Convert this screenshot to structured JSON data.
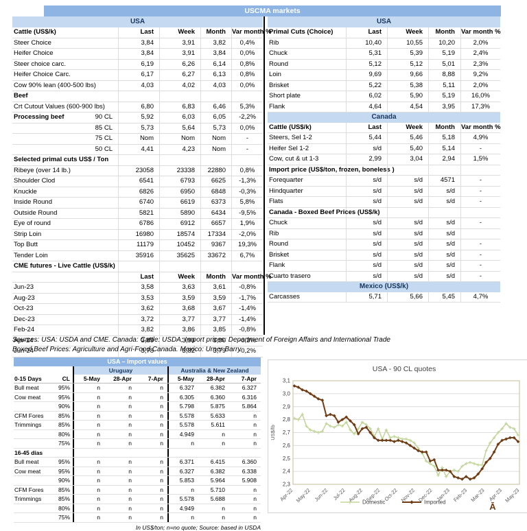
{
  "title": "USCMA markets",
  "colors": {
    "header_bar": "#8db4e2",
    "band": "#c5d9f1",
    "band_text": "#17365d",
    "domestic": "#c3d69b",
    "imported": "#6f3d15"
  },
  "left_table": {
    "region": "USA",
    "rows": [
      {
        "t": "ch",
        "label": "Cattle (US$/k)",
        "v": [
          "Last",
          "Week",
          "Month",
          "Var month %"
        ]
      },
      {
        "t": "d",
        "label": "Steer Choice",
        "v": [
          "3,84",
          "3,91",
          "3,82",
          "0,4%"
        ]
      },
      {
        "t": "d",
        "label": "Heifer Choice",
        "v": [
          "3,84",
          "3,91",
          "3,84",
          "0,0%"
        ]
      },
      {
        "t": "d",
        "label": "Steer choice carc.",
        "v": [
          "6,19",
          "6,26",
          "6,14",
          "0,8%"
        ]
      },
      {
        "t": "d",
        "label": "Heifer Choice Carc.",
        "v": [
          "6,17",
          "6,27",
          "6,13",
          "0,8%"
        ]
      },
      {
        "t": "d",
        "label": "Cow 90% lean (400-500 lbs)",
        "v": [
          "4,03",
          "4,02",
          "4,03",
          "0,0%"
        ]
      },
      {
        "t": "s",
        "label": "Beef"
      },
      {
        "t": "d",
        "label": "Crt Cutout Values (600-900 lbs)",
        "v": [
          "6,80",
          "6,83",
          "6,46",
          "5,3%"
        ]
      },
      {
        "t": "d",
        "label": "Processing beef",
        "label2": "90 CL",
        "bold": true,
        "v": [
          "5,92",
          "6,03",
          "6,05",
          "-2,2%"
        ]
      },
      {
        "t": "d",
        "label": "",
        "label2": "85 CL",
        "v": [
          "5,73",
          "5,64",
          "5,73",
          "0,0%"
        ]
      },
      {
        "t": "d",
        "label": "",
        "label2": "75 CL",
        "v": [
          "Nom",
          "Nom",
          "Nom",
          "-"
        ]
      },
      {
        "t": "d",
        "label": "",
        "label2": "50 CL",
        "v": [
          "4,41",
          "4,23",
          "Nom",
          "-"
        ]
      },
      {
        "t": "s",
        "label": "Selected primal cuts US$ / Ton"
      },
      {
        "t": "d",
        "label": "Ribeye (over 14 lb.)",
        "v": [
          "23058",
          "23338",
          "22880",
          "0,8%"
        ]
      },
      {
        "t": "d",
        "label": "Shoulder Clod",
        "v": [
          "6541",
          "6793",
          "6625",
          "-1,3%"
        ]
      },
      {
        "t": "d",
        "label": "Knuckle",
        "v": [
          "6826",
          "6950",
          "6848",
          "-0,3%"
        ]
      },
      {
        "t": "d",
        "label": "Inside Round",
        "v": [
          "6740",
          "6619",
          "6373",
          "5,8%"
        ]
      },
      {
        "t": "d",
        "label": "Outside Round",
        "v": [
          "5821",
          "5890",
          "6434",
          "-9,5%"
        ]
      },
      {
        "t": "d",
        "label": "Eye of round",
        "v": [
          "6786",
          "6912",
          "6657",
          "1,9%"
        ]
      },
      {
        "t": "d",
        "label": "Strip Loin",
        "v": [
          "16980",
          "18574",
          "17334",
          "-2,0%"
        ]
      },
      {
        "t": "d",
        "label": "Top Butt",
        "v": [
          "11179",
          "10452",
          "9367",
          "19,3%"
        ]
      },
      {
        "t": "d",
        "label": "Tender Loin",
        "v": [
          "35916",
          "35625",
          "33672",
          "6,7%"
        ]
      },
      {
        "t": "s",
        "label": "CME futures - Live Cattle (US$/k)"
      },
      {
        "t": "ch",
        "label": "",
        "v": [
          "Last",
          "Week",
          "Month",
          "Var month %"
        ]
      },
      {
        "t": "d",
        "label": "Jun-23",
        "v": [
          "3,58",
          "3,63",
          "3,61",
          "-0,8%"
        ]
      },
      {
        "t": "d",
        "label": "Aug-23",
        "v": [
          "3,53",
          "3,59",
          "3,59",
          "-1,7%"
        ]
      },
      {
        "t": "d",
        "label": "Oct-23",
        "v": [
          "3,62",
          "3,68",
          "3,67",
          "-1,4%"
        ]
      },
      {
        "t": "d",
        "label": "Dec-23",
        "v": [
          "3,72",
          "3,77",
          "3,77",
          "-1,4%"
        ]
      },
      {
        "t": "d",
        "label": "Feb-24",
        "v": [
          "3,82",
          "3,86",
          "3,85",
          "-0,8%"
        ]
      },
      {
        "t": "d",
        "label": "Apr-24",
        "v": [
          "3,89",
          "3,93",
          "3,90",
          "-0,3%"
        ]
      },
      {
        "t": "d",
        "label": "Jun-24",
        "v": [
          "3,78",
          "3,82",
          "3,79",
          "-0,2%"
        ]
      }
    ]
  },
  "right_table": {
    "region": "USA",
    "rows": [
      {
        "t": "ch",
        "label": "Primal Cuts (Choice)",
        "v": [
          "Last",
          "Week",
          "Month",
          "Var month %"
        ]
      },
      {
        "t": "d",
        "label": "Rib",
        "v": [
          "10,40",
          "10,55",
          "10,20",
          "2,0%"
        ]
      },
      {
        "t": "d",
        "label": "Chuck",
        "v": [
          "5,31",
          "5,39",
          "5,19",
          "2,4%"
        ]
      },
      {
        "t": "d",
        "label": "Round",
        "v": [
          "5,12",
          "5,12",
          "5,01",
          "2,3%"
        ]
      },
      {
        "t": "d",
        "label": "Loin",
        "v": [
          "9,69",
          "9,66",
          "8,88",
          "9,2%"
        ]
      },
      {
        "t": "d",
        "label": "Brisket",
        "v": [
          "5,22",
          "5,38",
          "5,11",
          "2,0%"
        ]
      },
      {
        "t": "d",
        "label": "Short plate",
        "v": [
          "6,02",
          "5,90",
          "5,19",
          "16,0%"
        ]
      },
      {
        "t": "d",
        "label": "Flank",
        "v": [
          "4,64",
          "4,54",
          "3,95",
          "17,3%"
        ]
      },
      {
        "t": "band",
        "label": "Canada"
      },
      {
        "t": "ch",
        "label": "Cattle (US$/k)",
        "v": [
          "Last",
          "Week",
          "Month",
          "Var month %"
        ]
      },
      {
        "t": "d",
        "label": "Steers, Sel 1-2",
        "v": [
          "5,44",
          "5,46",
          "5,18",
          "4,9%"
        ]
      },
      {
        "t": "d",
        "label": "Heifer Sel 1-2",
        "v": [
          "s/d",
          "5,40",
          "5,14",
          "-"
        ]
      },
      {
        "t": "d",
        "label": "Cow, cut & ut 1-3",
        "v": [
          "2,99",
          "3,04",
          "2,94",
          "1,5%"
        ]
      },
      {
        "t": "s",
        "label": "Import price (US$/ton, frozen, boneless )"
      },
      {
        "t": "d",
        "label": "Forequarter",
        "v": [
          "s/d",
          "s/d",
          "4571",
          "-"
        ]
      },
      {
        "t": "d",
        "label": "Hindquarter",
        "v": [
          "s/d",
          "s/d",
          "s/d",
          "-"
        ]
      },
      {
        "t": "d",
        "label": "Flats",
        "v": [
          "s/d",
          "s/d",
          "s/d",
          "-"
        ]
      },
      {
        "t": "s",
        "label": "Canada - Boxed Beef Prices (US$/k)"
      },
      {
        "t": "d",
        "label": "Chuck",
        "v": [
          "s/d",
          "s/d",
          "s/d",
          "-"
        ]
      },
      {
        "t": "d",
        "label": "Rib",
        "v": [
          "s/d",
          "s/d",
          "s/d",
          ""
        ]
      },
      {
        "t": "d",
        "label": "Round",
        "v": [
          "s/d",
          "s/d",
          "s/d",
          "-"
        ]
      },
      {
        "t": "d",
        "label": "Brisket",
        "v": [
          "s/d",
          "s/d",
          "s/d",
          "-"
        ]
      },
      {
        "t": "d",
        "label": "Flank",
        "v": [
          "s/d",
          "s/d",
          "s/d",
          "-"
        ]
      },
      {
        "t": "d",
        "label": "Cuarto trasero",
        "v": [
          "s/d",
          "s/d",
          "s/d",
          "-"
        ]
      },
      {
        "t": "band",
        "label": "Mexico (US$/k)"
      },
      {
        "t": "d",
        "label": "Carcasses",
        "v": [
          "5,71",
          "5,66",
          "5,45",
          "4,7%"
        ]
      }
    ]
  },
  "sources": {
    "line1": "Sources: USA: USDA and CME. Canada: Cattle: USDA; Import prices: Department of Foreign Affairs and International Trade",
    "line2": "Boxed Beef Prices: Agriculture and Agri-Food Canada. Mexico: Urner Barry"
  },
  "import_table": {
    "title": "USA – Import values",
    "groups": [
      "Uruguay",
      "Australia & New Zealand"
    ],
    "header": [
      "0-15 Days",
      "CL",
      "5-May",
      "28-Apr",
      "7-Apr",
      "5-May",
      "28-Apr",
      "7-Apr"
    ],
    "rows_0_15": [
      [
        "Bull meat",
        "95%",
        "n",
        "n",
        "n",
        "6.327",
        "6.382",
        "6.327"
      ],
      [
        "Cow meat",
        "95%",
        "n",
        "n",
        "n",
        "6.305",
        "6.360",
        "6.316"
      ],
      [
        "",
        "90%",
        "n",
        "n",
        "n",
        "5.798",
        "5.875",
        "5.864"
      ],
      [
        "CFM Fores",
        "85%",
        "n",
        "n",
        "n",
        "5.578",
        "5.633",
        "n"
      ],
      [
        "Trimmings",
        "85%",
        "n",
        "n",
        "n",
        "5.578",
        "5.611",
        "n"
      ],
      [
        "",
        "80%",
        "n",
        "n",
        "n",
        "4.949",
        "n",
        "n"
      ],
      [
        "",
        "75%",
        "n",
        "n",
        "n",
        "n",
        "n",
        "n"
      ]
    ],
    "section2": "16-45 días",
    "rows_16_45": [
      [
        "Bull meat",
        "95%",
        "n",
        "n",
        "n",
        "6.371",
        "6.415",
        "6.360"
      ],
      [
        "Cow meat",
        "95%",
        "n",
        "n",
        "n",
        "6.327",
        "6.382",
        "6.338"
      ],
      [
        "",
        "90%",
        "n",
        "n",
        "n",
        "5.853",
        "5.964",
        "5.908"
      ],
      [
        "CFM Fores",
        "85%",
        "n",
        "n",
        "n",
        "n",
        "5.710",
        "n"
      ],
      [
        "Trimmings",
        "85%",
        "n",
        "n",
        "n",
        "5.578",
        "5.688",
        "n"
      ],
      [
        "",
        "80%",
        "n",
        "n",
        "n",
        "4.949",
        "n",
        "n"
      ],
      [
        "",
        "75%",
        "n",
        "n",
        "n",
        "n",
        "n",
        "n"
      ]
    ],
    "footer": "In US$/ton; n=no quote; Source: based in USDA"
  },
  "chart_data": {
    "type": "line",
    "title": "USA - 90 CL quotes",
    "ylabel": "US$/lb",
    "ylim": [
      2.3,
      3.1
    ],
    "ytick_step": 0.1,
    "ytick_labels": [
      "2,3",
      "2,4",
      "2,5",
      "2,6",
      "2,7",
      "2,8",
      "2,9",
      "3,0",
      "3,1"
    ],
    "x_labels": [
      "Apr-22",
      "May-22",
      "Jun-22",
      "Jul-22",
      "Aug-22",
      "Sep-22",
      "Oct-22",
      "Nov-22",
      "Dec-22",
      "Jan-23",
      "Feb-23",
      "Mar-23",
      "Apr-23",
      "May-23"
    ],
    "legend_position": "bottom",
    "grid": true,
    "watermark": "Ā",
    "series": [
      {
        "name": "Domestic",
        "marker": "plus",
        "values": [
          2.81,
          2.8,
          2.84,
          2.75,
          2.72,
          2.71,
          2.7,
          2.71,
          2.77,
          2.75,
          2.74,
          2.76,
          2.75,
          2.78,
          2.72,
          2.69,
          2.73,
          2.78,
          2.76,
          2.73,
          2.67,
          2.73,
          2.65,
          2.72,
          2.66,
          2.67,
          2.66,
          2.65,
          2.65,
          2.64,
          2.62,
          2.58,
          2.54,
          2.48,
          2.46,
          2.44,
          2.37,
          2.43,
          2.36,
          2.4,
          2.41,
          2.4,
          2.44,
          2.46,
          2.47,
          2.46,
          2.45,
          2.45,
          2.56,
          2.62,
          2.66,
          2.7,
          2.73,
          2.77,
          2.74,
          2.73,
          2.68
        ]
      },
      {
        "name": "Imported",
        "marker": "diamond",
        "values": [
          3.06,
          3.05,
          3.03,
          3.02,
          3.0,
          2.98,
          2.96,
          2.95,
          2.83,
          2.84,
          2.83,
          2.78,
          2.8,
          2.82,
          2.79,
          2.76,
          2.69,
          2.73,
          2.74,
          2.7,
          2.66,
          2.64,
          2.64,
          2.64,
          2.64,
          2.63,
          2.64,
          2.63,
          2.62,
          2.6,
          2.58,
          2.56,
          2.55,
          2.55,
          2.48,
          2.49,
          2.41,
          2.41,
          2.41,
          2.4,
          2.36,
          2.35,
          2.34,
          2.36,
          2.34,
          2.35,
          2.38,
          2.42,
          2.47,
          2.5,
          2.55,
          2.61,
          2.64,
          2.65,
          2.66,
          2.66,
          2.63
        ]
      }
    ]
  }
}
